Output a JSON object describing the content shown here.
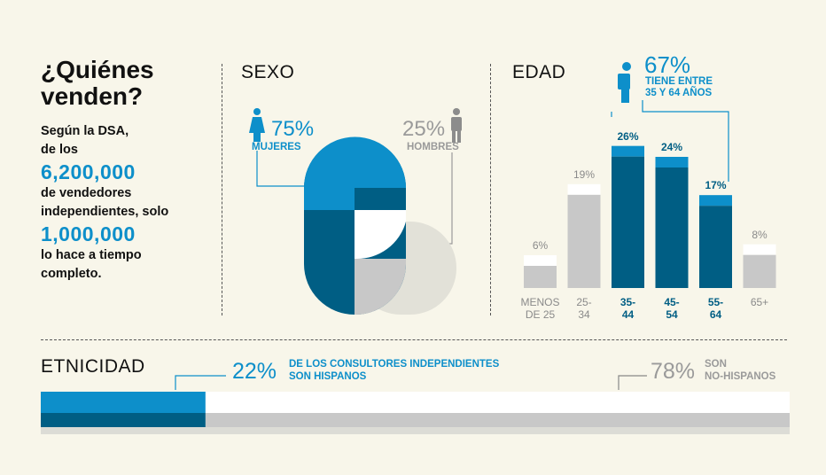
{
  "colors": {
    "blue": "#0d8fca",
    "dark_blue": "#005e84",
    "gray": "#c8c8c8",
    "light_gray": "#dcdcd6",
    "white": "#ffffff",
    "bg": "#f8f6ea"
  },
  "intro": {
    "title_line1": "¿Quiénes",
    "title_line2": "venden?",
    "line1": "Según la DSA,",
    "line2": "de los",
    "total": "6,200,000",
    "line3": "de vendedores",
    "line4": "independientes, solo",
    "fulltime": "1,000,000",
    "line5": "lo hace a tiempo",
    "line6": "completo."
  },
  "sexo": {
    "heading": "SEXO",
    "women_pct": "75%",
    "women_label": "MUJERES",
    "men_pct": "25%",
    "men_label": "HOMBRES",
    "women_icon": "woman-icon",
    "men_icon": "man-icon"
  },
  "edad": {
    "heading": "EDAD",
    "callout_pct": "67%",
    "callout_line1": "TIENE ENTRE",
    "callout_line2": "35 Y 64 AÑOS",
    "callout_icon": "person-with-box-icon"
  },
  "chart_data": [
    {
      "type": "pie",
      "title": "SEXO",
      "categories": [
        "MUJERES",
        "HOMBRES"
      ],
      "values": [
        75,
        25
      ]
    },
    {
      "type": "bar",
      "title": "EDAD",
      "categories": [
        "MENOS DE 25",
        "25-34",
        "35-44",
        "45-54",
        "55-64",
        "65+"
      ],
      "tick_lines": [
        [
          "MENOS",
          "DE 25"
        ],
        [
          "25-",
          "34"
        ],
        [
          "35-",
          "44"
        ],
        [
          "45-",
          "54"
        ],
        [
          "55-",
          "64"
        ],
        [
          "65+"
        ]
      ],
      "values": [
        6,
        19,
        26,
        24,
        17,
        8
      ],
      "labels": [
        "6%",
        "19%",
        "26%",
        "24%",
        "17%",
        "8%"
      ],
      "highlighted": [
        false,
        false,
        true,
        true,
        true,
        false
      ],
      "ylim": [
        0,
        30
      ]
    },
    {
      "type": "bar",
      "title": "ETNICIDAD",
      "categories": [
        "HISPANOS",
        "NO-HISPANOS"
      ],
      "values": [
        22,
        78
      ]
    }
  ],
  "etnicidad": {
    "heading": "ETNICIDAD",
    "hisp_pct": "22%",
    "hisp_line1": "DE LOS CONSULTORES INDEPENDIENTES",
    "hisp_line2": "SON HISPANOS",
    "nonhisp_pct": "78%",
    "nonhisp_line1": "SON",
    "nonhisp_line2": "NO-HISPANOS"
  }
}
